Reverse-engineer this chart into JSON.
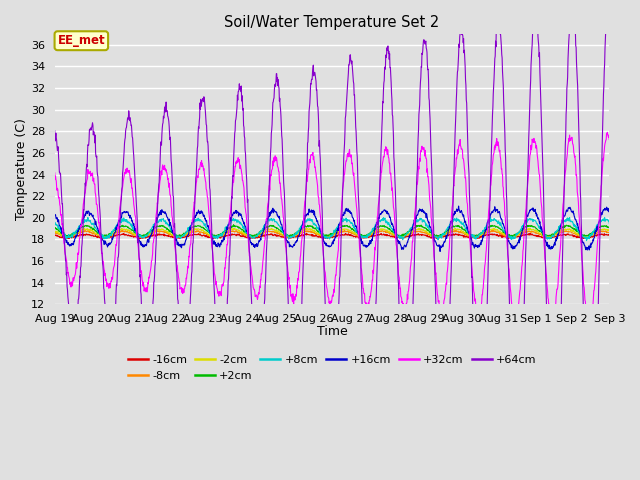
{
  "title": "Soil/Water Temperature Set 2",
  "xlabel": "Time",
  "ylabel": "Temperature (C)",
  "ylim": [
    12,
    37
  ],
  "yticks": [
    12,
    14,
    16,
    18,
    20,
    22,
    24,
    26,
    28,
    30,
    32,
    34,
    36
  ],
  "annotation": "EE_met",
  "annotation_color": "#cc0000",
  "annotation_bg": "#ffffcc",
  "annotation_border": "#aaaa00",
  "bg_color": "#e0e0e0",
  "x_tick_labels": [
    "Aug 19",
    "Aug 20",
    "Aug 21",
    "Aug 22",
    "Aug 23",
    "Aug 24",
    "Aug 25",
    "Aug 26",
    "Aug 27",
    "Aug 28",
    "Aug 29",
    "Aug 30",
    "Aug 31",
    "Sep 1",
    "Sep 2",
    "Sep 3"
  ],
  "x_tick_positions": [
    0,
    24,
    48,
    72,
    96,
    120,
    144,
    168,
    192,
    216,
    240,
    264,
    288,
    312,
    336,
    360
  ],
  "series_labels": [
    "-16cm",
    "-8cm",
    "-2cm",
    "+2cm",
    "+8cm",
    "+16cm",
    "+32cm",
    "+64cm"
  ],
  "series_colors": [
    "#dd0000",
    "#ff8800",
    "#dddd00",
    "#00bb00",
    "#00cccc",
    "#0000cc",
    "#ff00ff",
    "#8800cc"
  ],
  "series_bases": [
    18.3,
    18.5,
    18.6,
    18.8,
    19.0,
    19.0,
    19.0,
    18.5
  ],
  "series_amps": [
    0.15,
    0.25,
    0.35,
    0.45,
    0.8,
    1.5,
    5.0,
    9.0
  ],
  "series_amp_growth": [
    0.0,
    0.0,
    0.0,
    0.0,
    0.005,
    0.015,
    0.05,
    0.1
  ],
  "series_phases_h": [
    0.0,
    0.2,
    0.4,
    0.6,
    1.0,
    2.0,
    3.0,
    4.0
  ],
  "series_noise": [
    0.04,
    0.04,
    0.04,
    0.04,
    0.08,
    0.1,
    0.2,
    0.3
  ]
}
